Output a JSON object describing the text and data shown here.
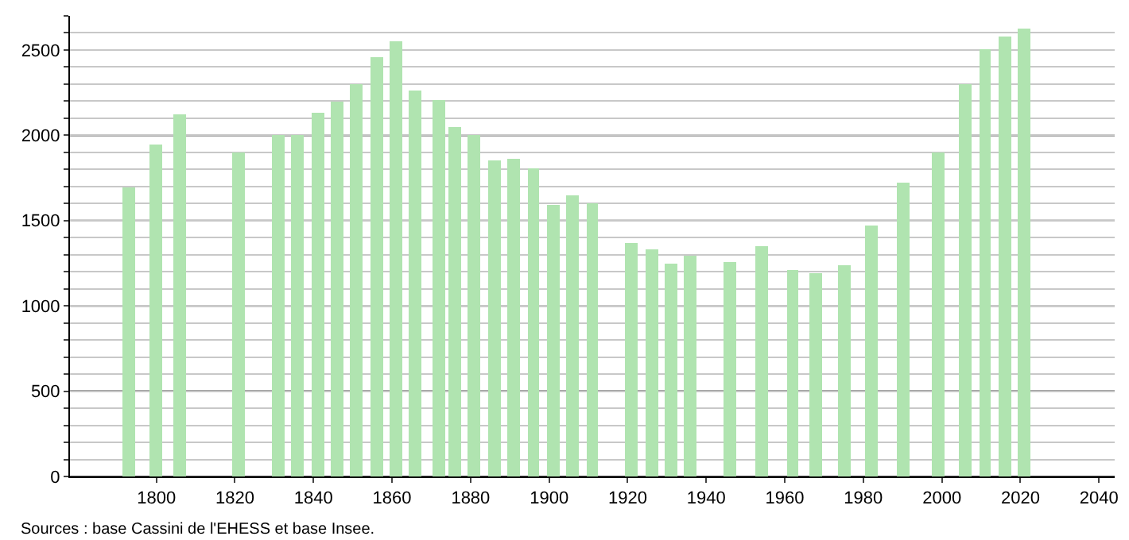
{
  "chart_data": {
    "type": "bar",
    "x": [
      1793,
      1800,
      1806,
      1821,
      1831,
      1836,
      1841,
      1846,
      1851,
      1856,
      1861,
      1866,
      1872,
      1876,
      1881,
      1886,
      1891,
      1896,
      1901,
      1906,
      1911,
      1921,
      1926,
      1931,
      1936,
      1946,
      1954,
      1962,
      1968,
      1975,
      1982,
      1990,
      1999,
      2006,
      2011,
      2016,
      2021
    ],
    "values": [
      1690,
      1950,
      2120,
      1900,
      2000,
      2000,
      2130,
      2200,
      2300,
      2460,
      2550,
      2260,
      2210,
      2050,
      2000,
      1850,
      1860,
      1810,
      1590,
      1650,
      1600,
      1370,
      1330,
      1250,
      1290,
      1260,
      1350,
      1210,
      1190,
      1240,
      1470,
      1720,
      1900,
      2300,
      2500,
      2580,
      2630
    ],
    "color": "#b0e4b0",
    "xlim": [
      1778,
      2044
    ],
    "xticks": [
      1800,
      1820,
      1840,
      1860,
      1880,
      1900,
      1920,
      1940,
      1960,
      1980,
      2000,
      2020,
      2040
    ],
    "ylim": [
      0,
      2700
    ],
    "yticks": [
      0,
      {
        "value": 100,
        "label": null
      },
      {
        "value": 200,
        "label": null
      },
      {
        "value": 300,
        "label": null
      },
      {
        "value": 400,
        "label": null
      },
      500,
      {
        "value": 600,
        "label": null
      },
      {
        "value": 700,
        "label": null
      },
      {
        "value": 800,
        "label": null
      },
      {
        "value": 900,
        "label": null
      },
      1000,
      {
        "value": 1100,
        "label": null
      },
      {
        "value": 1200,
        "label": null
      },
      {
        "value": 1300,
        "label": null
      },
      {
        "value": 1400,
        "label": null
      },
      1500,
      {
        "value": 1600,
        "label": null
      },
      {
        "value": 1700,
        "label": null
      },
      {
        "value": 1800,
        "label": null
      },
      {
        "value": 1900,
        "label": null
      },
      2000,
      {
        "value": 2100,
        "label": null
      },
      {
        "value": 2200,
        "label": null
      },
      {
        "value": 2300,
        "label": null
      },
      {
        "value": 2400,
        "label": null
      },
      2500,
      {
        "value": 2600,
        "label": null
      },
      {
        "value": 2700,
        "label": null
      }
    ],
    "grid": "y",
    "annotations": [
      "Sources : base Cassini de l'EHESS et base Insee."
    ]
  }
}
